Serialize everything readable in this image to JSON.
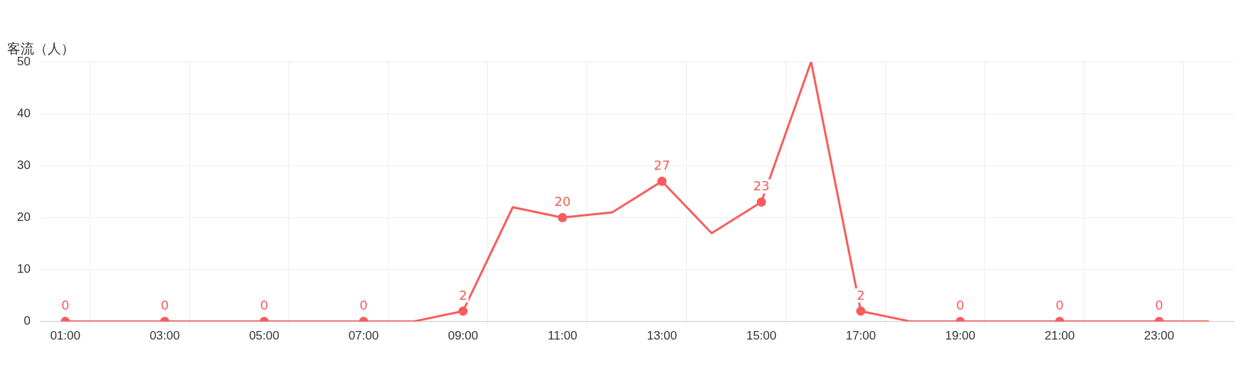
{
  "chart_data": {
    "type": "line",
    "ylabel": "客流（人）",
    "categories": [
      "01:00",
      null,
      "03:00",
      null,
      "05:00",
      null,
      "07:00",
      null,
      "09:00",
      null,
      "11:00",
      null,
      "13:00",
      null,
      "15:00",
      null,
      "17:00",
      null,
      "19:00",
      null,
      "21:00",
      null,
      "23:00",
      null
    ],
    "series": [
      {
        "color": "#f95c5c",
        "values": [
          0,
          0,
          0,
          0,
          0,
          0,
          0,
          0,
          2,
          22,
          20,
          21,
          27,
          17,
          23,
          50,
          2,
          0,
          0,
          0,
          0,
          0,
          0,
          0
        ],
        "value_labels": [
          "0",
          null,
          "0",
          null,
          "0",
          null,
          "0",
          null,
          "2",
          null,
          "20",
          null,
          "27",
          null,
          "23",
          null,
          "2",
          null,
          "0",
          null,
          "0",
          null,
          "0",
          null
        ]
      }
    ],
    "ylim": [
      0,
      50
    ],
    "yticks": [
      0,
      10,
      20,
      30,
      40,
      50
    ],
    "grid": true,
    "legend": false,
    "marker": "circle",
    "line_style": "solid"
  }
}
